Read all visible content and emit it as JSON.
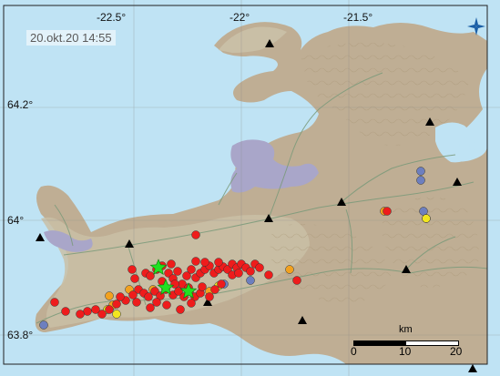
{
  "timestamp": "20.okt.20  14:55",
  "lon_labels": [
    "-22.5°",
    "-22°",
    "-21.5°"
  ],
  "lat_labels": [
    "64.2°",
    "64°",
    "63.8°"
  ],
  "scale": {
    "unit": "km",
    "ticks": [
      "0",
      "10",
      "20"
    ]
  },
  "colors": {
    "sea": "#bfe3f4",
    "land": "#bfae94",
    "land_low": "#c9bfa6",
    "lake": "#9ec8e3",
    "lava": "#a9a6c9",
    "road": "#7a9a7a",
    "recent_red": "#ee1c1c",
    "orange": "#f2a11f",
    "yellow": "#f2e61f",
    "blue": "#6d7fbf",
    "star": "#22e022",
    "station": "#000000"
  },
  "quakes": {
    "red": [
      [
        160,
        300
      ],
      [
        165,
        303
      ],
      [
        172,
        296
      ],
      [
        178,
        309
      ],
      [
        185,
        300
      ],
      [
        190,
        306
      ],
      [
        195,
        298
      ],
      [
        200,
        312
      ],
      [
        205,
        303
      ],
      [
        210,
        296
      ],
      [
        215,
        305
      ],
      [
        220,
        300
      ],
      [
        225,
        296
      ],
      [
        230,
        292
      ],
      [
        235,
        300
      ],
      [
        240,
        296
      ],
      [
        245,
        293
      ],
      [
        250,
        296
      ],
      [
        255,
        290
      ],
      [
        260,
        294
      ],
      [
        265,
        290
      ],
      [
        270,
        294
      ],
      [
        275,
        298
      ],
      [
        280,
        290
      ],
      [
        285,
        294
      ],
      [
        295,
        302
      ],
      [
        152,
        318
      ],
      [
        158,
        322
      ],
      [
        163,
        326
      ],
      [
        170,
        320
      ],
      [
        176,
        325
      ],
      [
        182,
        318
      ],
      [
        190,
        324
      ],
      [
        196,
        320
      ],
      [
        202,
        326
      ],
      [
        208,
        320
      ],
      [
        214,
        326
      ],
      [
        220,
        322
      ],
      [
        150,
        332
      ],
      [
        146,
        324
      ],
      [
        138,
        330
      ],
      [
        132,
        326
      ],
      [
        128,
        334
      ],
      [
        120,
        340
      ],
      [
        112,
        345
      ],
      [
        105,
        340
      ],
      [
        96,
        342
      ],
      [
        88,
        345
      ],
      [
        72,
        342
      ],
      [
        60,
        332
      ],
      [
        145,
        296
      ],
      [
        148,
        306
      ],
      [
        178,
        292
      ],
      [
        188,
        290
      ],
      [
        215,
        287
      ],
      [
        225,
        288
      ],
      [
        240,
        288
      ],
      [
        165,
        338
      ],
      [
        172,
        332
      ],
      [
        183,
        335
      ],
      [
        198,
        340
      ],
      [
        210,
        333
      ],
      [
        230,
        326
      ],
      [
        236,
        318
      ],
      [
        243,
        312
      ],
      [
        326,
        308
      ],
      [
        215,
        258
      ],
      [
        425,
        232
      ],
      [
        255,
        302
      ],
      [
        262,
        300
      ],
      [
        222,
        315
      ],
      [
        207,
        316
      ],
      [
        192,
        312
      ]
    ],
    "orange": [
      [
        120,
        325
      ],
      [
        124,
        335
      ],
      [
        142,
        318
      ],
      [
        168,
        318
      ],
      [
        230,
        320
      ],
      [
        318,
        296
      ],
      [
        422,
        232
      ]
    ],
    "yellow": [
      [
        118,
        340
      ],
      [
        128,
        345
      ],
      [
        240,
        314
      ],
      [
        468,
        240
      ]
    ],
    "blue": [
      [
        48,
        357
      ],
      [
        246,
        312
      ],
      [
        275,
        308
      ],
      [
        462,
        188
      ],
      [
        462,
        198
      ],
      [
        465,
        232
      ],
      [
        468,
        240
      ]
    ],
    "stars": [
      [
        174,
        294
      ],
      [
        182,
        316
      ],
      [
        207,
        320
      ]
    ]
  },
  "stations": [
    [
      296,
      48
    ],
    [
      472,
      134
    ],
    [
      502,
      200
    ],
    [
      375,
      222
    ],
    [
      295,
      240
    ],
    [
      142,
      268
    ],
    [
      44,
      261
    ],
    [
      228,
      332
    ],
    [
      332,
      352
    ],
    [
      446,
      296
    ],
    [
      519,
      405
    ]
  ]
}
